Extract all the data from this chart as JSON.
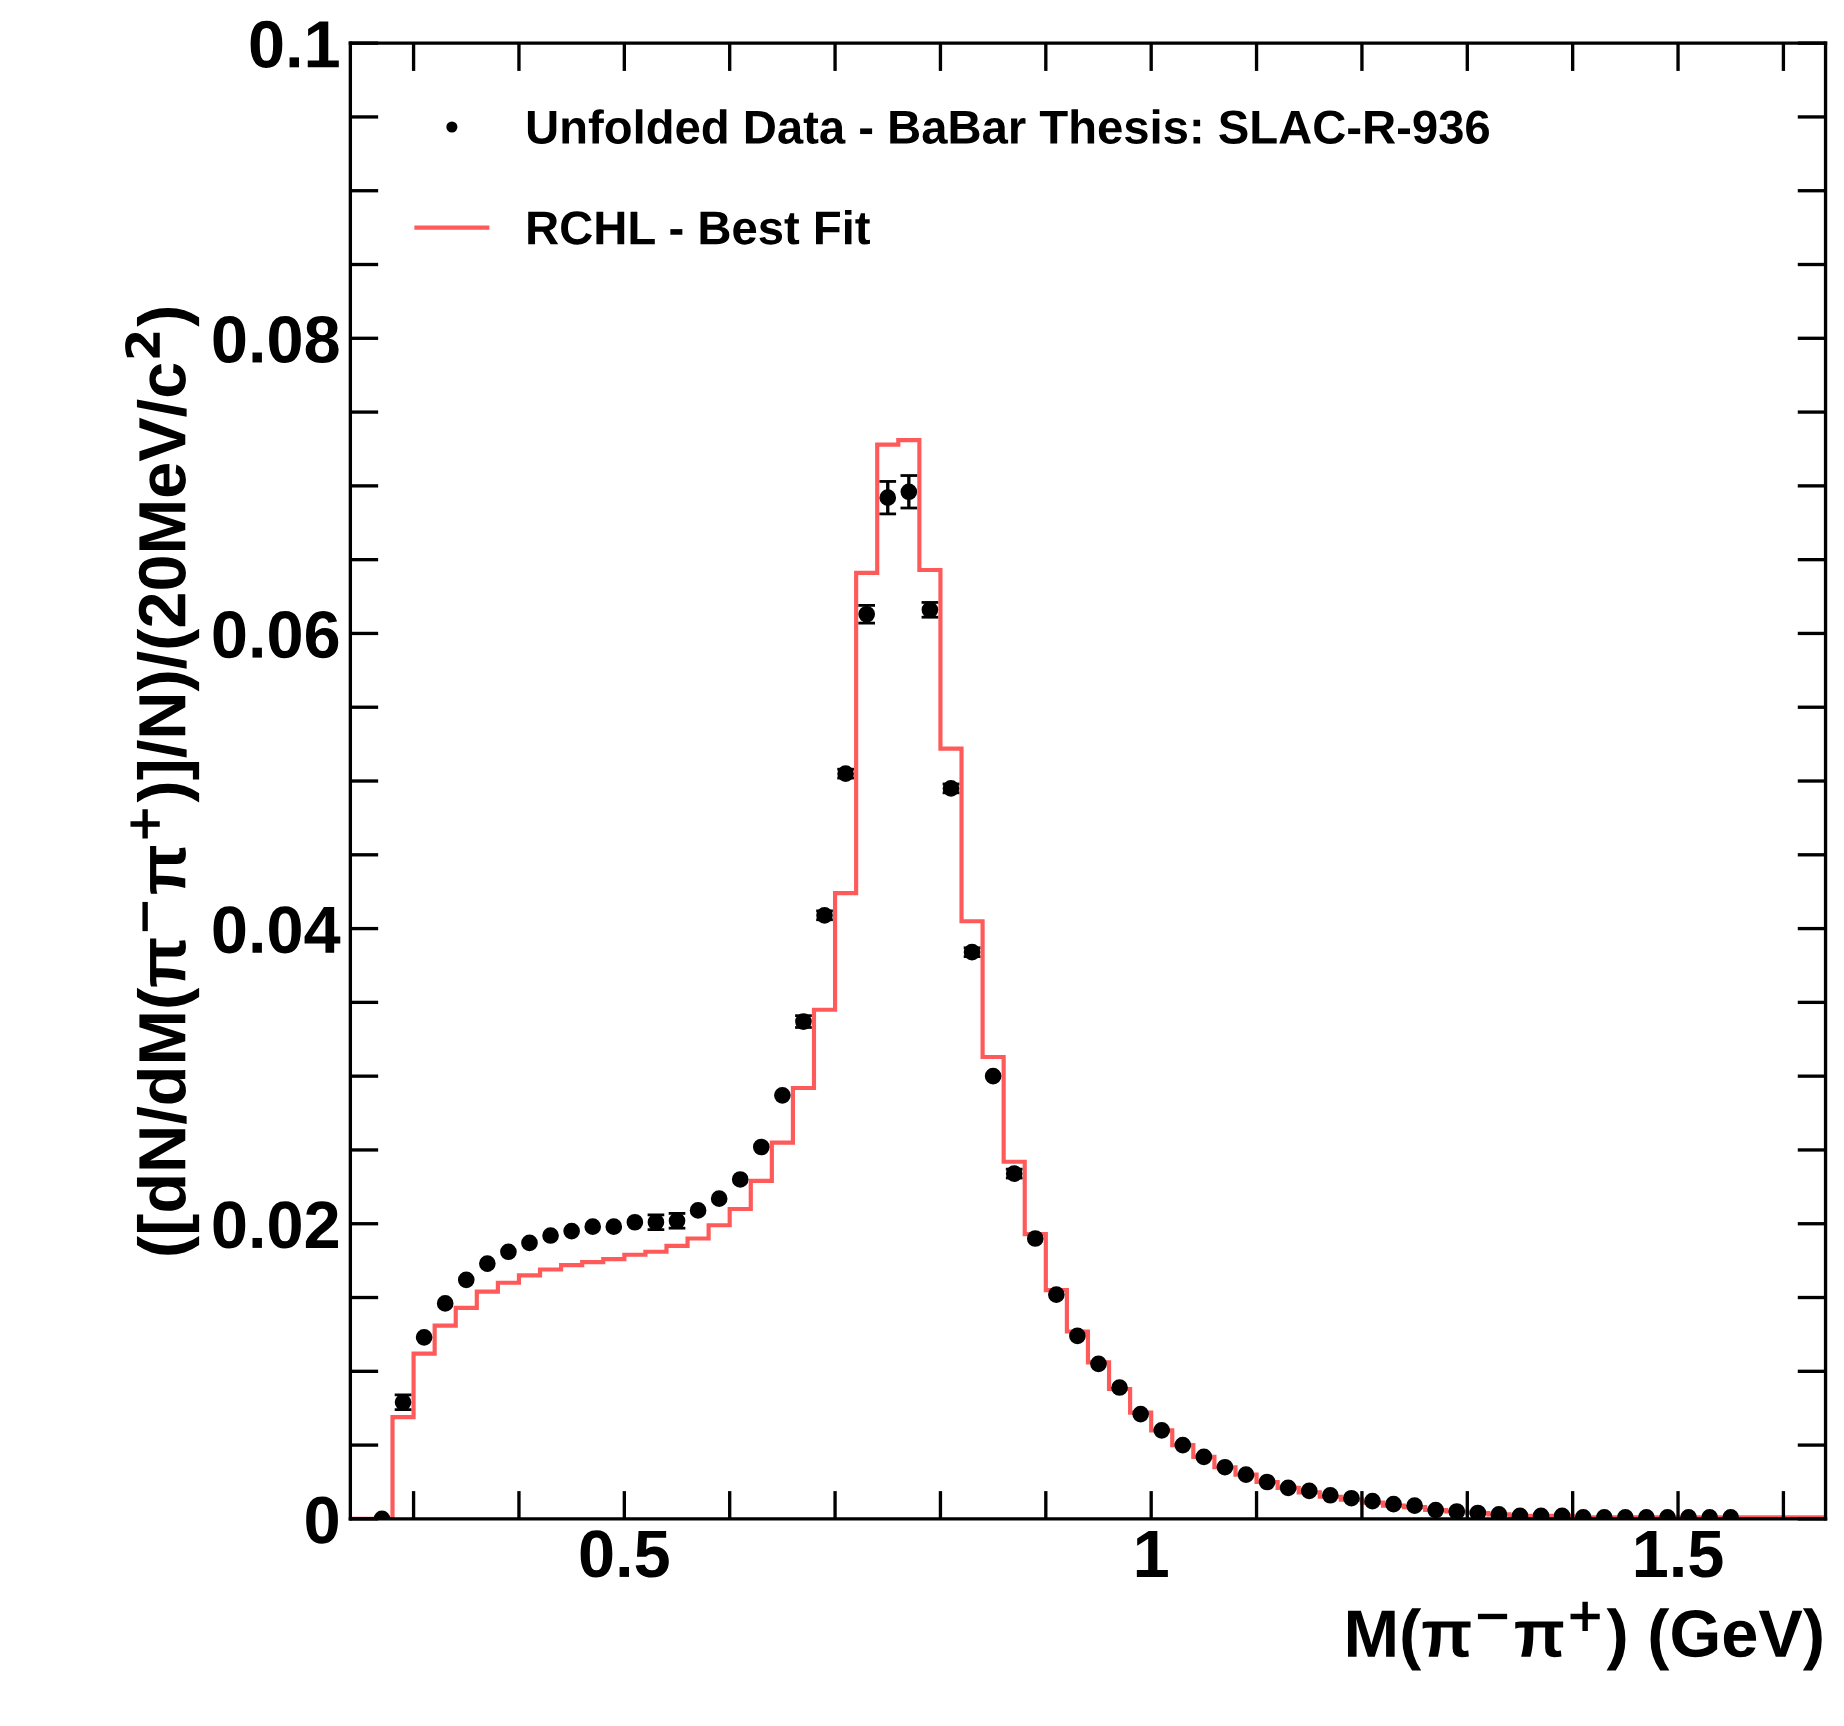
{
  "chart_data": {
    "type": "histogram",
    "xlabel": "M(π$^{−}$π$^{+}$) (GeV)",
    "ylabel": "([dN/dM(π$^{−}$π$^{+}$)]/N)/(20MeV/c$^{2}$)",
    "xlim": [
      0.24,
      1.64
    ],
    "ylim": [
      0,
      0.1
    ],
    "xticks": [
      {
        "value": 0.3,
        "label": null
      },
      {
        "value": 0.4,
        "label": null
      },
      0.5,
      {
        "value": 0.6,
        "label": null
      },
      {
        "value": 0.7,
        "label": null
      },
      {
        "value": 0.8,
        "label": null
      },
      {
        "value": 0.9,
        "label": null
      },
      1,
      {
        "value": 1.1,
        "label": null
      },
      {
        "value": 1.2,
        "label": null
      },
      {
        "value": 1.3,
        "label": null
      },
      {
        "value": 1.4,
        "label": null
      },
      1.5,
      {
        "value": 1.6,
        "label": null
      }
    ],
    "yticks": [
      0,
      {
        "value": 0.005,
        "label": null
      },
      {
        "value": 0.01,
        "label": null
      },
      {
        "value": 0.015,
        "label": null
      },
      0.02,
      {
        "value": 0.025,
        "label": null
      },
      {
        "value": 0.03,
        "label": null
      },
      {
        "value": 0.035,
        "label": null
      },
      0.04,
      {
        "value": 0.045,
        "label": null
      },
      {
        "value": 0.05,
        "label": null
      },
      {
        "value": 0.055,
        "label": null
      },
      0.06,
      {
        "value": 0.065,
        "label": null
      },
      {
        "value": 0.07,
        "label": null
      },
      {
        "value": 0.075,
        "label": null
      },
      0.08,
      {
        "value": 0.085,
        "label": null
      },
      {
        "value": 0.09,
        "label": null
      },
      {
        "value": 0.095,
        "label": null
      },
      0.1
    ],
    "legend": "top left",
    "grid": false,
    "series": [
      {
        "type": "scatter",
        "name": "Unfolded Data - BaBar Thesis: SLAC-R-936",
        "color": "#000000",
        "marker": "circle",
        "x": [
          0.27,
          0.29,
          0.31,
          0.33,
          0.35,
          0.37,
          0.39,
          0.41,
          0.43,
          0.45,
          0.47,
          0.49,
          0.51,
          0.53,
          0.55,
          0.57,
          0.59,
          0.61,
          0.63,
          0.65,
          0.67,
          0.69,
          0.71,
          0.73,
          0.75,
          0.77,
          0.79,
          0.81,
          0.83,
          0.85,
          0.87,
          0.89,
          0.91,
          0.93,
          0.95,
          0.97,
          0.99,
          1.01,
          1.03,
          1.05,
          1.07,
          1.09,
          1.11,
          1.13,
          1.15,
          1.17,
          1.19,
          1.21,
          1.23,
          1.25,
          1.27,
          1.29,
          1.31,
          1.33,
          1.35,
          1.37,
          1.39,
          1.41,
          1.43,
          1.45,
          1.47,
          1.49,
          1.51,
          1.53,
          1.55
        ],
        "values": [
          0,
          0.0079,
          0.0123,
          0.0146,
          0.0162,
          0.0173,
          0.0181,
          0.0187,
          0.0192,
          0.0195,
          0.0198,
          0.0198,
          0.0201,
          0.0201,
          0.0202,
          0.0209,
          0.0217,
          0.023,
          0.0252,
          0.0287,
          0.0337,
          0.0409,
          0.0505,
          0.0613,
          0.0692,
          0.0696,
          0.0616,
          0.0495,
          0.0384,
          0.03,
          0.0234,
          0.019,
          0.0152,
          0.0124,
          0.0105,
          0.0089,
          0.0071,
          0.006,
          0.005,
          0.0042,
          0.0035,
          0.003,
          0.0025,
          0.0021,
          0.0019,
          0.0016,
          0.0014,
          0.0012,
          0.001,
          0.0009,
          0.0006,
          0.0005,
          0.0004,
          0.0003,
          0.0002,
          0.0002,
          0.0002,
          0.0001,
          0.0001,
          0.0001,
          0.0001,
          0.0001,
          0.0001,
          0.0001,
          0.0001
        ],
        "errors": [
          null,
          0.0005,
          null,
          null,
          null,
          null,
          null,
          null,
          null,
          null,
          null,
          null,
          null,
          0.0005,
          0.0005,
          null,
          null,
          null,
          null,
          null,
          0.0004,
          0.0003,
          0.0003,
          0.0006,
          0.0011,
          0.0011,
          0.0005,
          0.0003,
          0.0003,
          null,
          0.0003,
          null,
          null,
          null,
          null,
          null,
          null,
          null,
          null,
          null,
          null,
          null,
          null,
          null,
          null,
          null,
          null,
          null,
          null,
          null,
          null,
          null,
          null,
          null,
          null,
          null,
          null,
          null,
          null,
          null,
          null,
          null,
          null,
          null,
          null
        ]
      },
      {
        "name": "RCHL - Best Fit",
        "color": "#ff5a5a",
        "bins": [
          0.24,
          0.26,
          0.28,
          0.3,
          0.32,
          0.34,
          0.36,
          0.38,
          0.4,
          0.42,
          0.44,
          0.46,
          0.48,
          0.5,
          0.52,
          0.54,
          0.56,
          0.58,
          0.6,
          0.62,
          0.64,
          0.66,
          0.68,
          0.7,
          0.72,
          0.74,
          0.76,
          0.78,
          0.8,
          0.82,
          0.84,
          0.86,
          0.88,
          0.9,
          0.92,
          0.94,
          0.96,
          0.98,
          1.0,
          1.02,
          1.04,
          1.06,
          1.08,
          1.1,
          1.12,
          1.14,
          1.16,
          1.18,
          1.2,
          1.22,
          1.24,
          1.26,
          1.28,
          1.3,
          1.32,
          1.34,
          1.36,
          1.38,
          1.4,
          1.42,
          1.44,
          1.46,
          1.48,
          1.5,
          1.52,
          1.54,
          1.56,
          1.58,
          1.6,
          1.62,
          1.64
        ],
        "values": [
          0,
          0,
          0.0069,
          0.0112,
          0.0131,
          0.0143,
          0.0154,
          0.016,
          0.0165,
          0.0169,
          0.0172,
          0.0174,
          0.0176,
          0.0179,
          0.0181,
          0.0185,
          0.019,
          0.0199,
          0.021,
          0.0229,
          0.0255,
          0.0292,
          0.0345,
          0.0424,
          0.0641,
          0.0728,
          0.0731,
          0.0643,
          0.0522,
          0.0405,
          0.0313,
          0.0242,
          0.0193,
          0.0155,
          0.0127,
          0.0106,
          0.0088,
          0.0072,
          0.006,
          0.005,
          0.0042,
          0.0035,
          0.003,
          0.0025,
          0.0021,
          0.0018,
          0.0015,
          0.0013,
          0.0011,
          0.0009,
          0.0008,
          0.0006,
          0.0005,
          0.0004,
          0.0003,
          0.0002,
          0.0002,
          0.0002,
          0.0001,
          0.0001,
          0.0001,
          0.0001,
          0.0001,
          0.0001,
          0.0001,
          0.0001,
          0.0001,
          0.0001,
          0.0001,
          0.0001
        ]
      }
    ]
  }
}
